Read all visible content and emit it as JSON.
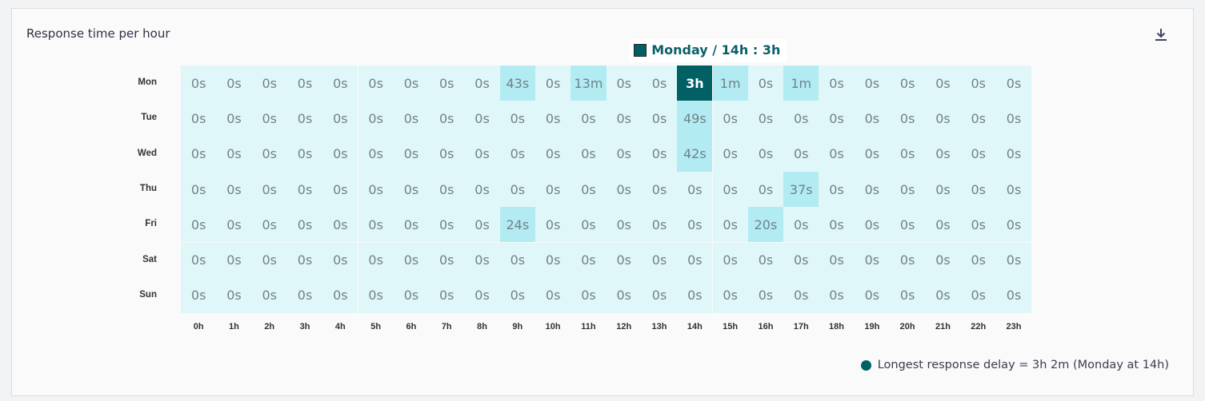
{
  "title": "Response time per hour",
  "download_icon": "download-icon",
  "colors": {
    "empty": "#e0f7fa",
    "low": "#b2ebf2",
    "max": "#006064"
  },
  "tooltip": {
    "label": "Monday / 14h : 3h"
  },
  "legend": {
    "label": "Longest response delay = 3h 2m (Monday at 14h)"
  },
  "chart_data": {
    "type": "heatmap",
    "title": "Response time per hour",
    "rows": [
      "Mon",
      "Tue",
      "Wed",
      "Thu",
      "Fri",
      "Sat",
      "Sun"
    ],
    "columns": [
      "0h",
      "1h",
      "2h",
      "3h",
      "4h",
      "5h",
      "6h",
      "7h",
      "8h",
      "9h",
      "10h",
      "11h",
      "12h",
      "13h",
      "14h",
      "15h",
      "16h",
      "17h",
      "18h",
      "19h",
      "20h",
      "21h",
      "22h",
      "23h"
    ],
    "max_cell": {
      "row": "Mon",
      "column": "14h"
    },
    "values": [
      [
        "0s",
        "0s",
        "0s",
        "0s",
        "0s",
        "0s",
        "0s",
        "0s",
        "0s",
        "43s",
        "0s",
        "13m",
        "0s",
        "0s",
        "3h",
        "1m",
        "0s",
        "1m",
        "0s",
        "0s",
        "0s",
        "0s",
        "0s",
        "0s"
      ],
      [
        "0s",
        "0s",
        "0s",
        "0s",
        "0s",
        "0s",
        "0s",
        "0s",
        "0s",
        "0s",
        "0s",
        "0s",
        "0s",
        "0s",
        "49s",
        "0s",
        "0s",
        "0s",
        "0s",
        "0s",
        "0s",
        "0s",
        "0s",
        "0s"
      ],
      [
        "0s",
        "0s",
        "0s",
        "0s",
        "0s",
        "0s",
        "0s",
        "0s",
        "0s",
        "0s",
        "0s",
        "0s",
        "0s",
        "0s",
        "42s",
        "0s",
        "0s",
        "0s",
        "0s",
        "0s",
        "0s",
        "0s",
        "0s",
        "0s"
      ],
      [
        "0s",
        "0s",
        "0s",
        "0s",
        "0s",
        "0s",
        "0s",
        "0s",
        "0s",
        "0s",
        "0s",
        "0s",
        "0s",
        "0s",
        "0s",
        "0s",
        "0s",
        "37s",
        "0s",
        "0s",
        "0s",
        "0s",
        "0s",
        "0s"
      ],
      [
        "0s",
        "0s",
        "0s",
        "0s",
        "0s",
        "0s",
        "0s",
        "0s",
        "0s",
        "24s",
        "0s",
        "0s",
        "0s",
        "0s",
        "0s",
        "0s",
        "20s",
        "0s",
        "0s",
        "0s",
        "0s",
        "0s",
        "0s",
        "0s"
      ],
      [
        "0s",
        "0s",
        "0s",
        "0s",
        "0s",
        "0s",
        "0s",
        "0s",
        "0s",
        "0s",
        "0s",
        "0s",
        "0s",
        "0s",
        "0s",
        "0s",
        "0s",
        "0s",
        "0s",
        "0s",
        "0s",
        "0s",
        "0s",
        "0s"
      ],
      [
        "0s",
        "0s",
        "0s",
        "0s",
        "0s",
        "0s",
        "0s",
        "0s",
        "0s",
        "0s",
        "0s",
        "0s",
        "0s",
        "0s",
        "0s",
        "0s",
        "0s",
        "0s",
        "0s",
        "0s",
        "0s",
        "0s",
        "0s",
        "0s"
      ]
    ]
  }
}
